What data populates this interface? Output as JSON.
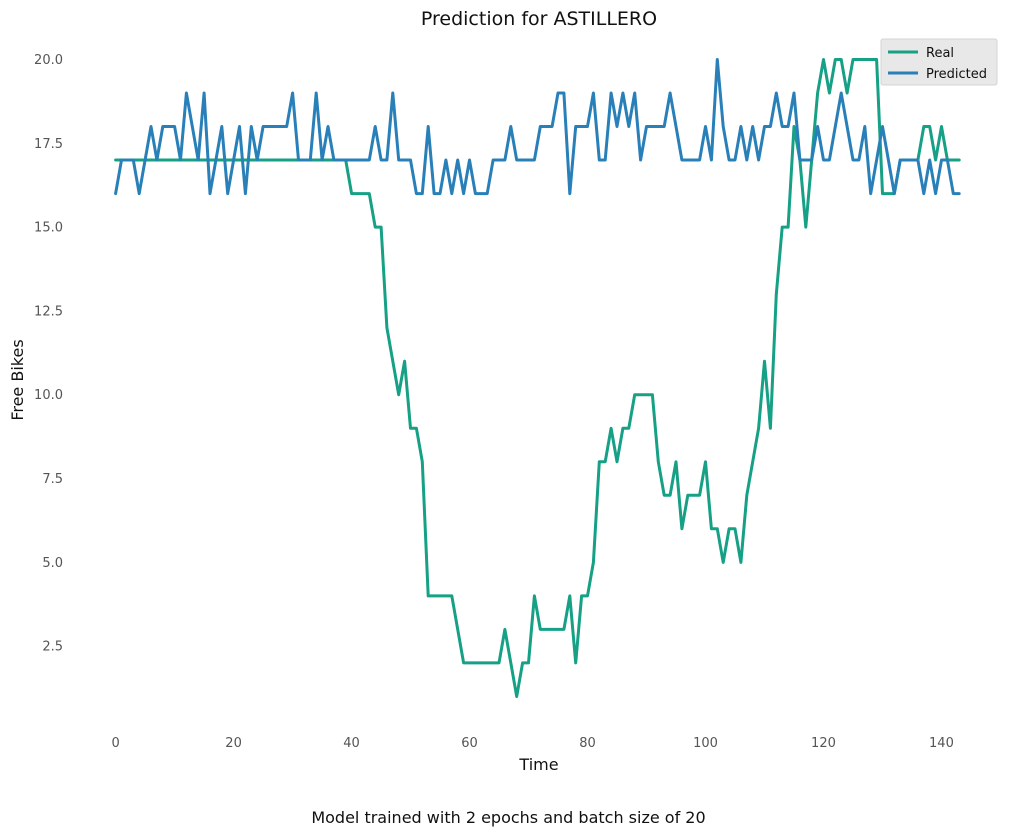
{
  "chart_data": {
    "type": "line",
    "title": "Prediction for ASTILLERO",
    "xlabel": "Time",
    "ylabel": "Free Bikes",
    "xlim": [
      -4,
      144.5
    ],
    "ylim": [
      0,
      20.7
    ],
    "xticks": [
      0,
      20,
      40,
      60,
      80,
      100,
      120,
      140
    ],
    "yticks": [
      2.5,
      5.0,
      7.5,
      10.0,
      12.5,
      15.0,
      17.5,
      20.0
    ],
    "ytick_labels": [
      "2.5",
      "5.0",
      "7.5",
      "10.0",
      "12.5",
      "15.0",
      "17.5",
      "20.0"
    ],
    "grid": false,
    "legend_position": "top-right",
    "series": [
      {
        "name": "Real",
        "color": "#16a085",
        "x": [
          0,
          1,
          2,
          3,
          4,
          5,
          6,
          7,
          8,
          9,
          10,
          11,
          12,
          13,
          14,
          15,
          16,
          17,
          18,
          19,
          20,
          21,
          22,
          23,
          24,
          25,
          26,
          27,
          28,
          29,
          30,
          31,
          32,
          33,
          34,
          35,
          36,
          37,
          38,
          39,
          40,
          41,
          42,
          43,
          44,
          45,
          46,
          47,
          48,
          49,
          50,
          51,
          52,
          53,
          54,
          55,
          56,
          57,
          58,
          59,
          60,
          61,
          62,
          63,
          64,
          65,
          66,
          67,
          68,
          69,
          70,
          71,
          72,
          73,
          74,
          75,
          76,
          77,
          78,
          79,
          80,
          81,
          82,
          83,
          84,
          85,
          86,
          87,
          88,
          89,
          90,
          91,
          92,
          93,
          94,
          95,
          96,
          97,
          98,
          99,
          100,
          101,
          102,
          103,
          104,
          105,
          106,
          107,
          108,
          109,
          110,
          111,
          112,
          113,
          114,
          115,
          116,
          117,
          118,
          119,
          120,
          121,
          122,
          123,
          124,
          125,
          126,
          127,
          128,
          129,
          130,
          131,
          132,
          133,
          134,
          135,
          136,
          137,
          138,
          139,
          140,
          141,
          142,
          143
        ],
        "values": [
          17,
          17,
          17,
          17,
          17,
          17,
          17,
          17,
          17,
          17,
          17,
          17,
          17,
          17,
          17,
          17,
          17,
          17,
          17,
          17,
          17,
          17,
          17,
          17,
          17,
          17,
          17,
          17,
          17,
          17,
          17,
          17,
          17,
          17,
          17,
          17,
          17,
          17,
          17,
          17,
          16,
          16,
          16,
          16,
          15,
          15,
          12,
          11,
          10,
          11,
          9,
          9,
          8,
          4,
          4,
          4,
          4,
          4,
          3,
          2,
          2,
          2,
          2,
          2,
          2,
          2,
          3,
          2,
          1,
          2,
          2,
          4,
          3,
          3,
          3,
          3,
          3,
          4,
          2,
          4,
          4,
          5,
          8,
          8,
          9,
          8,
          9,
          9,
          10,
          10,
          10,
          10,
          8,
          7,
          7,
          8,
          6,
          7,
          7,
          7,
          8,
          6,
          6,
          5,
          6,
          6,
          5,
          7,
          8,
          9,
          11,
          9,
          13,
          15,
          15,
          18,
          17,
          15,
          17,
          19,
          20,
          19,
          20,
          20,
          19,
          20,
          20,
          20,
          20,
          20,
          16,
          16,
          16,
          17,
          17,
          17,
          17,
          18,
          18,
          17,
          18,
          17,
          17,
          17
        ]
      },
      {
        "name": "Predicted",
        "color": "#2980b9",
        "x": [
          0,
          1,
          2,
          3,
          4,
          5,
          6,
          7,
          8,
          9,
          10,
          11,
          12,
          13,
          14,
          15,
          16,
          17,
          18,
          19,
          20,
          21,
          22,
          23,
          24,
          25,
          26,
          27,
          28,
          29,
          30,
          31,
          32,
          33,
          34,
          35,
          36,
          37,
          38,
          39,
          40,
          41,
          42,
          43,
          44,
          45,
          46,
          47,
          48,
          49,
          50,
          51,
          52,
          53,
          54,
          55,
          56,
          57,
          58,
          59,
          60,
          61,
          62,
          63,
          64,
          65,
          66,
          67,
          68,
          69,
          70,
          71,
          72,
          73,
          74,
          75,
          76,
          77,
          78,
          79,
          80,
          81,
          82,
          83,
          84,
          85,
          86,
          87,
          88,
          89,
          90,
          91,
          92,
          93,
          94,
          95,
          96,
          97,
          98,
          99,
          100,
          101,
          102,
          103,
          104,
          105,
          106,
          107,
          108,
          109,
          110,
          111,
          112,
          113,
          114,
          115,
          116,
          117,
          118,
          119,
          120,
          121,
          122,
          123,
          124,
          125,
          126,
          127,
          128,
          129,
          130,
          131,
          132,
          133,
          134,
          135,
          136,
          137,
          138,
          139,
          140,
          141,
          142,
          143
        ],
        "values": [
          16,
          17,
          17,
          17,
          16,
          17,
          18,
          17,
          18,
          18,
          18,
          17,
          19,
          18,
          17,
          19,
          16,
          17,
          18,
          16,
          17,
          18,
          16,
          18,
          17,
          18,
          18,
          18,
          18,
          18,
          19,
          17,
          17,
          17,
          19,
          17,
          18,
          17,
          17,
          17,
          17,
          17,
          17,
          17,
          18,
          17,
          17,
          19,
          17,
          17,
          17,
          16,
          16,
          18,
          16,
          16,
          17,
          16,
          17,
          16,
          17,
          16,
          16,
          16,
          17,
          17,
          17,
          18,
          17,
          17,
          17,
          17,
          18,
          18,
          18,
          19,
          19,
          16,
          18,
          18,
          18,
          19,
          17,
          17,
          19,
          18,
          19,
          18,
          19,
          17,
          18,
          18,
          18,
          18,
          19,
          18,
          17,
          17,
          17,
          17,
          18,
          17,
          20,
          18,
          17,
          17,
          18,
          17,
          18,
          17,
          18,
          18,
          19,
          18,
          18,
          19,
          17,
          17,
          17,
          18,
          17,
          17,
          18,
          19,
          18,
          17,
          17,
          18,
          16,
          17,
          18,
          17,
          16,
          17,
          17,
          17,
          17,
          16,
          17,
          16,
          17,
          17,
          16,
          16
        ]
      }
    ]
  },
  "caption": "Model trained with 2 epochs and batch size of 20"
}
